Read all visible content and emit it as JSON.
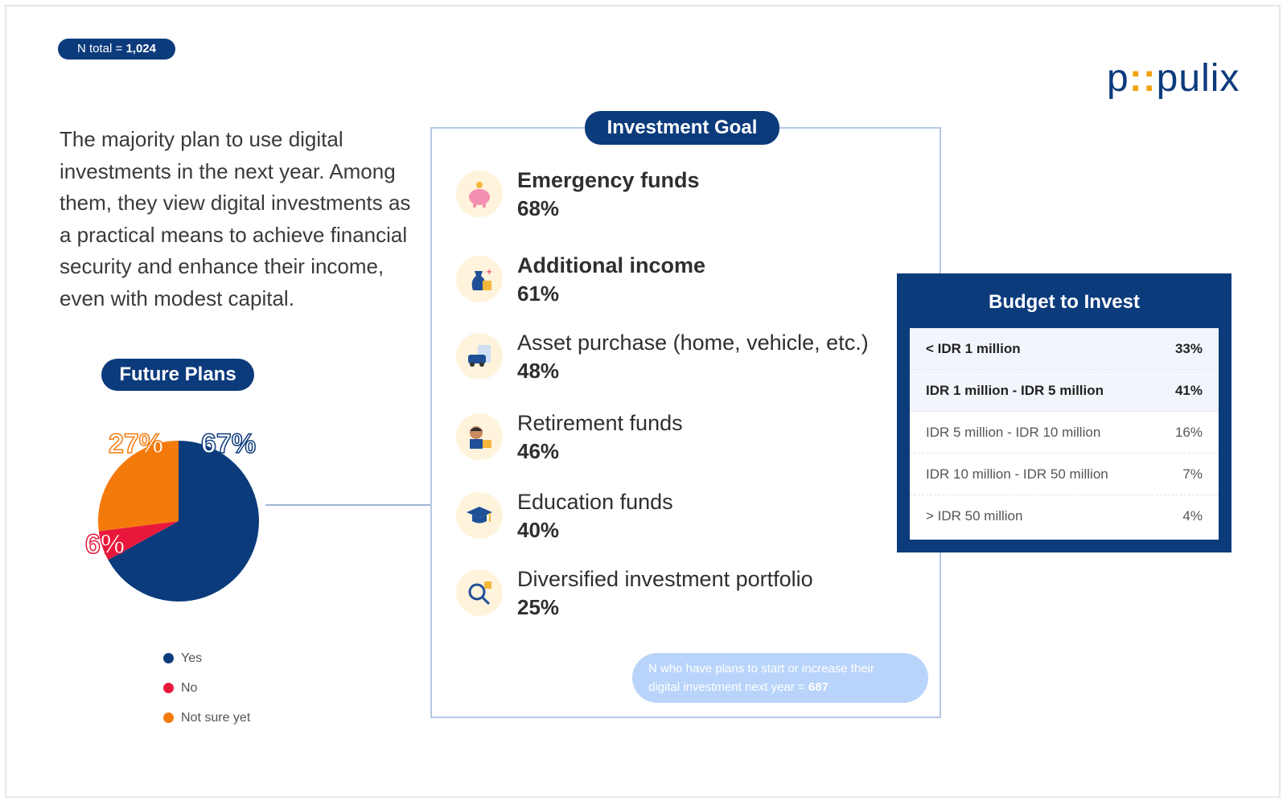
{
  "header": {
    "n_total_label": "N total =",
    "n_total_value": "1,024",
    "logo_left": "p",
    "logo_dots": "::",
    "logo_right": "pulix"
  },
  "intro_text": "The majority plan to use digital investments in the next year. Among them, they view digital investments as a practical means to achieve financial security and enhance their income, even with modest capital.",
  "future_plans": {
    "title": "Future Plans",
    "labels": [
      "67%",
      "6%",
      "27%"
    ]
  },
  "investment_goal": {
    "title": "Investment Goal",
    "items": [
      {
        "label": "Emergency funds",
        "value": "68%",
        "icon": "piggy-bank-icon"
      },
      {
        "label": "Additional income",
        "value": "61%",
        "icon": "money-bag-icon"
      },
      {
        "label": "Asset purchase (home, vehicle, etc.)",
        "value": "48%",
        "icon": "car-icon"
      },
      {
        "label": "Retirement funds",
        "value": "46%",
        "icon": "elderly-icon"
      },
      {
        "label": "Education funds",
        "value": "40%",
        "icon": "graduation-cap-icon"
      },
      {
        "label": "Diversified investment portfolio",
        "value": "25%",
        "icon": "magnifier-chart-icon"
      }
    ],
    "note_line1": "N who have plans to start or increase their",
    "note_line2": "digital investment next year =",
    "note_value": "687"
  },
  "budget": {
    "title": "Budget to Invest",
    "rows": [
      {
        "label": "< IDR 1 million",
        "value": "33%"
      },
      {
        "label": "IDR 1 million - IDR 5 million",
        "value": "41%"
      },
      {
        "label": "IDR 5 million - IDR 10 million",
        "value": "16%"
      },
      {
        "label": "IDR 10 million - IDR 50 million",
        "value": "7%"
      },
      {
        "label": "> IDR 50 million",
        "value": "4%"
      }
    ]
  },
  "colors": {
    "navy": "#0c3b7c",
    "yes": "#0c3b7c",
    "no": "#e8183c",
    "not_sure": "#f57a0c"
  },
  "chart_data": {
    "type": "pie",
    "title": "Future Plans",
    "categories": [
      "Yes",
      "No",
      "Not sure yet"
    ],
    "values": [
      67,
      6,
      27
    ],
    "legend": "bottom"
  }
}
